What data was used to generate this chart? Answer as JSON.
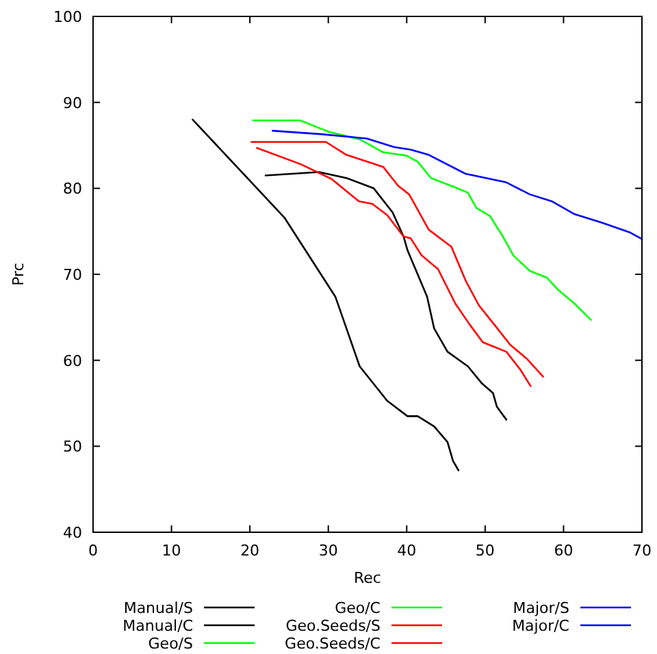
{
  "chart_data": {
    "type": "line",
    "xlabel": "Rec",
    "ylabel": "Prc",
    "xlim": [
      0,
      70
    ],
    "ylim": [
      40,
      100
    ],
    "xticks": [
      0,
      10,
      20,
      30,
      40,
      50,
      60,
      70
    ],
    "yticks": [
      40,
      50,
      60,
      70,
      80,
      90,
      100
    ],
    "grid": false,
    "legend": "bottom",
    "marker": "none",
    "line_style": "solid",
    "series": [
      {
        "name": "Manual/S",
        "color": "#000000",
        "x": [
          12.7,
          24.4,
          30.9,
          34.0,
          37.5,
          40.1,
          41.4,
          43.5,
          45.2,
          45.9,
          46.6
        ],
        "values": [
          88.0,
          76.6,
          67.4,
          59.3,
          55.3,
          53.5,
          53.5,
          52.3,
          50.5,
          48.3,
          47.2
        ]
      },
      {
        "name": "Manual/C",
        "color": "#000000",
        "x": [
          22.0,
          28.8,
          32.3,
          35.8,
          38.2,
          39.6,
          40.1,
          42.6,
          43.5,
          45.2,
          47.8,
          49.6,
          51.0,
          51.5,
          52.7
        ],
        "values": [
          81.5,
          81.9,
          81.2,
          80.0,
          77.2,
          74.4,
          72.8,
          67.4,
          63.7,
          61.0,
          59.3,
          57.3,
          56.2,
          54.6,
          53.1
        ]
      },
      {
        "name": "Geo/S",
        "color": "#00ff00"
      },
      {
        "name": "Geo/C",
        "color": "#00ff00",
        "x": [
          20.4,
          26.4,
          30.0,
          34.0,
          37.0,
          40.0,
          41.4,
          43.1,
          46.2,
          47.8,
          48.9,
          50.6,
          52.2,
          53.6,
          55.7,
          57.9,
          59.3,
          61.4,
          63.5
        ],
        "values": [
          87.9,
          87.9,
          86.6,
          85.7,
          84.2,
          83.8,
          83.1,
          81.2,
          80.1,
          79.5,
          77.7,
          76.8,
          74.5,
          72.2,
          70.4,
          69.6,
          68.2,
          66.6,
          64.7
        ]
      },
      {
        "name": "Geo.Seeds/S",
        "color": "#ff0000",
        "x": [
          20.9,
          26.5,
          30.4,
          33.9,
          35.6,
          37.5,
          39.6,
          40.5,
          41.9,
          44.0,
          46.2,
          48.0,
          49.7,
          52.7,
          54.5,
          55.8
        ],
        "values": [
          84.7,
          82.8,
          81.1,
          78.5,
          78.2,
          76.9,
          74.4,
          74.2,
          72.2,
          70.6,
          66.6,
          64.2,
          62.1,
          61.0,
          58.9,
          57.0
        ]
      },
      {
        "name": "Geo.Seeds/C",
        "color": "#ff0000",
        "x": [
          20.2,
          29.7,
          32.3,
          37.0,
          38.9,
          40.3,
          40.8,
          42.8,
          45.7,
          47.5,
          49.2,
          51.3,
          53.2,
          55.3,
          57.4
        ],
        "values": [
          85.4,
          85.4,
          83.9,
          82.5,
          80.3,
          79.3,
          78.5,
          75.2,
          73.2,
          69.3,
          66.4,
          64.0,
          61.8,
          60.2,
          58.1
        ]
      },
      {
        "name": "Major/S",
        "color": "#0000ff"
      },
      {
        "name": "Major/C",
        "color": "#0000ff",
        "x": [
          22.9,
          29.1,
          34.9,
          38.4,
          40.5,
          42.8,
          47.5,
          52.7,
          55.7,
          58.5,
          61.4,
          64.9,
          68.4,
          70.0
        ],
        "values": [
          86.7,
          86.3,
          85.8,
          84.8,
          84.5,
          83.9,
          81.7,
          80.7,
          79.3,
          78.5,
          77.0,
          76.0,
          74.9,
          74.1
        ]
      }
    ]
  }
}
